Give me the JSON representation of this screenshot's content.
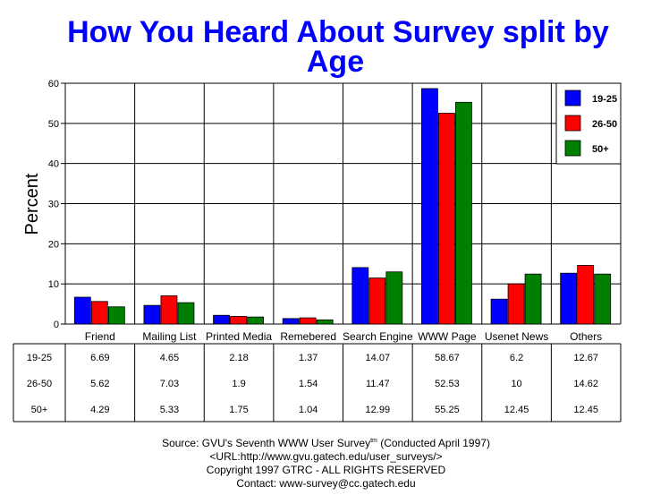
{
  "chart_data": {
    "type": "bar",
    "title_lines": [
      "How You Heard About Survey split by",
      "Age"
    ],
    "ylabel": "Percent",
    "xlabel": "",
    "ylim": [
      0,
      60
    ],
    "yticks": [
      0,
      10,
      20,
      30,
      40,
      50,
      60
    ],
    "grid": true,
    "legend_position": "top-right",
    "categories": [
      "Friend",
      "Mailing List",
      "Printed Media",
      "Remebered",
      "Search Engine",
      "WWW Page",
      "Usenet News",
      "Others"
    ],
    "series": [
      {
        "name": "19-25",
        "color": "#0000ff",
        "values": [
          6.69,
          4.65,
          2.18,
          1.37,
          14.07,
          58.67,
          6.2,
          12.67
        ],
        "labels": [
          "6.69",
          "4.65",
          "2.18",
          "1.37",
          "14.07",
          "58.67",
          "6.2",
          "12.67"
        ]
      },
      {
        "name": "26-50",
        "color": "#ff0000",
        "values": [
          5.62,
          7.03,
          1.9,
          1.54,
          11.47,
          52.53,
          10,
          14.62
        ],
        "labels": [
          "5.62",
          "7.03",
          "1.9",
          "1.54",
          "11.47",
          "52.53",
          "10",
          "14.62"
        ]
      },
      {
        "name": "50+",
        "color": "#008000",
        "values": [
          4.29,
          5.33,
          1.75,
          1.04,
          12.99,
          55.25,
          12.45,
          12.45
        ],
        "labels": [
          "4.29",
          "5.33",
          "1.75",
          "1.04",
          "12.99",
          "55.25",
          "12.45",
          "12.45"
        ]
      }
    ]
  },
  "footer": {
    "source_prefix": "Source: GVU's Seventh WWW User Survey",
    "source_sup": "tm",
    "source_suffix": " (Conducted April 1997)",
    "url": "<URL:http://www.gvu.gatech.edu/user_surveys/>",
    "copyright": "Copyright 1997 GTRC - ALL RIGHTS RESERVED",
    "contact": "Contact: www-survey@cc.gatech.edu"
  }
}
